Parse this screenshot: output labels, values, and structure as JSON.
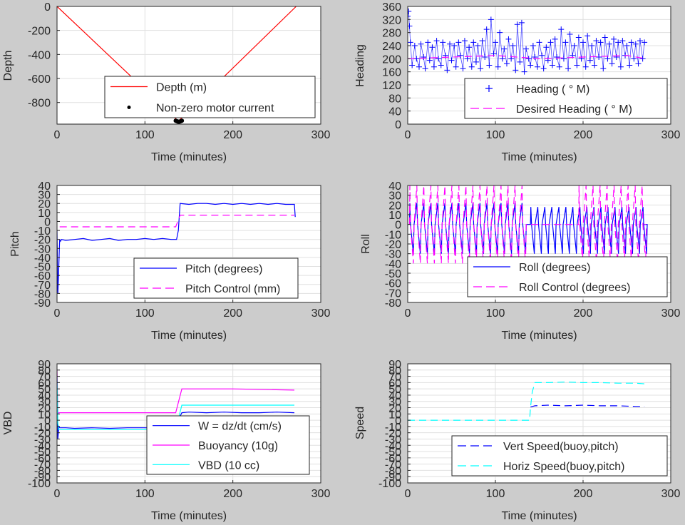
{
  "chart_data": [
    {
      "type": "line",
      "title": "",
      "xlabel": "Time (minutes)",
      "ylabel": "Depth",
      "xlim": [
        0,
        300
      ],
      "ylim": [
        -980,
        0
      ],
      "xticks": [
        0,
        100,
        200,
        300
      ],
      "yticks": [
        0,
        -200,
        -400,
        -600,
        -800
      ],
      "grid": true,
      "legend_position": "bottom",
      "colors": {
        "depth": "#ff0000",
        "motor": "#000000"
      },
      "series": [
        {
          "name": "Depth (m)",
          "style": "line",
          "color": "#ff0000",
          "x": [
            0,
            138,
            272
          ],
          "y": [
            0,
            -955,
            0
          ]
        },
        {
          "name": "Non-zero motor current",
          "style": "dots",
          "color": "#000000",
          "x": [
            135,
            136,
            137,
            138,
            139,
            140,
            141,
            142
          ],
          "y": [
            -952,
            -955,
            -958,
            -960,
            -960,
            -958,
            -955,
            -952
          ]
        }
      ]
    },
    {
      "type": "scatter",
      "title": "",
      "xlabel": "Time (minutes)",
      "ylabel": "Heading",
      "xlim": [
        0,
        300
      ],
      "ylim": [
        0,
        360
      ],
      "xticks": [
        0,
        100,
        200,
        300
      ],
      "yticks": [
        0,
        40,
        80,
        120,
        160,
        200,
        240,
        280,
        320,
        360
      ],
      "grid": true,
      "legend_position": "bottom",
      "series": [
        {
          "name": "Heading (   ° M)",
          "style": "plus",
          "color": "#0000ff",
          "x": [
            0,
            1,
            2,
            3,
            5,
            8,
            10,
            13,
            15,
            18,
            20,
            23,
            25,
            28,
            30,
            33,
            35,
            38,
            40,
            43,
            45,
            48,
            50,
            53,
            55,
            58,
            60,
            63,
            65,
            68,
            70,
            73,
            75,
            78,
            80,
            83,
            85,
            88,
            90,
            93,
            95,
            98,
            100,
            103,
            105,
            108,
            110,
            113,
            115,
            118,
            120,
            123,
            125,
            128,
            130,
            133,
            135,
            138,
            140,
            143,
            145,
            148,
            150,
            153,
            155,
            158,
            160,
            163,
            165,
            168,
            170,
            173,
            175,
            178,
            180,
            183,
            185,
            188,
            190,
            193,
            195,
            198,
            200,
            203,
            205,
            208,
            210,
            213,
            215,
            218,
            220,
            223,
            225,
            228,
            230,
            233,
            235,
            238,
            240,
            243,
            245,
            248,
            250,
            253,
            255,
            258,
            260,
            263,
            265,
            268,
            270
          ],
          "y": [
            330,
            345,
            300,
            250,
            180,
            240,
            200,
            175,
            245,
            205,
            170,
            250,
            195,
            235,
            175,
            255,
            200,
            180,
            250,
            210,
            165,
            245,
            195,
            240,
            175,
            250,
            210,
            170,
            255,
            200,
            235,
            175,
            250,
            190,
            240,
            170,
            255,
            205,
            290,
            180,
            320,
            215,
            250,
            175,
            280,
            200,
            230,
            185,
            260,
            200,
            240,
            165,
            305,
            190,
            310,
            160,
            230,
            200,
            180,
            240,
            205,
            175,
            250,
            210,
            170,
            235,
            195,
            250,
            180,
            260,
            205,
            175,
            290,
            200,
            250,
            170,
            275,
            210,
            240,
            180,
            265,
            200,
            250,
            175,
            270,
            195,
            240,
            180,
            255,
            205,
            250,
            170,
            265,
            200,
            245,
            185,
            260,
            205,
            250,
            175,
            255,
            210,
            240,
            180,
            250,
            200,
            245,
            185,
            255,
            200,
            250
          ]
        },
        {
          "name": "Desired Heading (     ° M)",
          "style": "dash",
          "color": "#ff00ff",
          "x": [
            0,
            50,
            100,
            150,
            200,
            250,
            272
          ],
          "y": [
            200,
            205,
            210,
            200,
            205,
            210,
            200
          ]
        }
      ]
    },
    {
      "type": "line",
      "title": "",
      "xlabel": "Time (minutes)",
      "ylabel": "Pitch",
      "xlim": [
        0,
        300
      ],
      "ylim": [
        -90,
        40
      ],
      "xticks": [
        0,
        100,
        200,
        300
      ],
      "yticks": [
        40,
        30,
        20,
        10,
        0,
        -10,
        -20,
        -30,
        -40,
        -50,
        -60,
        -70,
        -80,
        -90
      ],
      "grid": true,
      "legend_position": "bottom",
      "series": [
        {
          "name": "Pitch (degrees)",
          "style": "line",
          "color": "#0000ff",
          "x": [
            0,
            1,
            2,
            3,
            4,
            5,
            10,
            20,
            30,
            40,
            50,
            60,
            70,
            80,
            90,
            100,
            110,
            120,
            130,
            136,
            138,
            140,
            150,
            160,
            170,
            180,
            190,
            200,
            210,
            220,
            230,
            240,
            250,
            260,
            270,
            271
          ],
          "y": [
            -10,
            -80,
            -50,
            -20,
            -22,
            -20,
            -21,
            -20,
            -19,
            -21,
            -20,
            -19,
            -21,
            -20,
            -20,
            -19,
            -20,
            -19,
            -20,
            -20,
            -10,
            20,
            19,
            20,
            20,
            19,
            20,
            19,
            20,
            19,
            20,
            19,
            20,
            19,
            19,
            5
          ]
        },
        {
          "name": "Pitch Control (mm)",
          "style": "dash",
          "color": "#ff00ff",
          "x": [
            3,
            135,
            140,
            270
          ],
          "y": [
            -6,
            -6,
            7,
            7
          ]
        }
      ]
    },
    {
      "type": "line",
      "title": "",
      "xlabel": "Time (minutes)",
      "ylabel": "Roll",
      "xlim": [
        0,
        300
      ],
      "ylim": [
        -80,
        40
      ],
      "xticks": [
        0,
        100,
        200,
        300
      ],
      "yticks": [
        40,
        30,
        20,
        10,
        0,
        -10,
        -20,
        -30,
        -40,
        -50,
        -60,
        -70,
        -80
      ],
      "grid": true,
      "legend_position": "bottom",
      "oscillation": {
        "roll_segments": [
          {
            "x": [
              2,
              136
            ],
            "amplitude": [
              22,
              -30
            ]
          },
          {
            "x": [
              140,
              270
            ],
            "amplitude": [
              18,
              -30
            ]
          }
        ],
        "control_segments": [
          {
            "x": [
              2,
              136
            ],
            "amplitude": [
              40,
              -40
            ]
          },
          {
            "x": [
              195,
              270
            ],
            "amplitude": [
              40,
              -40
            ]
          }
        ],
        "period_minutes": 8
      },
      "series": [
        {
          "name": "Roll (degrees)",
          "style": "line",
          "color": "#0000ff"
        },
        {
          "name": "Roll Control (degrees)",
          "style": "dash",
          "color": "#ff00ff"
        }
      ]
    },
    {
      "type": "line",
      "title": "",
      "xlabel": "Time (minutes)",
      "ylabel": "VBD",
      "xlim": [
        0,
        300
      ],
      "ylim": [
        -100,
        90
      ],
      "xticks": [
        0,
        100,
        200,
        300
      ],
      "yticks": [
        90,
        80,
        70,
        60,
        50,
        40,
        30,
        20,
        10,
        0,
        -10,
        -20,
        -30,
        -40,
        -50,
        -60,
        -70,
        -80,
        -90,
        -100
      ],
      "grid": true,
      "legend_position": "bottom",
      "series": [
        {
          "name": "W = dz/dt (cm/s)",
          "style": "line",
          "color": "#0000ff",
          "x": [
            0,
            1,
            2,
            3,
            5,
            10,
            20,
            40,
            60,
            80,
            100,
            120,
            135,
            138,
            142,
            150,
            170,
            190,
            210,
            230,
            250,
            270
          ],
          "y": [
            60,
            -30,
            -10,
            -12,
            -12,
            -12,
            -13,
            -12,
            -13,
            -12,
            -12,
            -13,
            -12,
            0,
            12,
            13,
            12,
            13,
            12,
            12,
            13,
            12
          ]
        },
        {
          "name": "Buoyancy (10g)",
          "style": "line",
          "color": "#ff00ff",
          "x": [
            0,
            1,
            2,
            5,
            135,
            142,
            200,
            270
          ],
          "y": [
            80,
            10,
            12,
            12,
            12,
            50,
            50,
            48
          ]
        },
        {
          "name": "VBD (10 cc)",
          "style": "line",
          "color": "#00ffff",
          "x": [
            0,
            1,
            2,
            5,
            135,
            142,
            200,
            270
          ],
          "y": [
            70,
            -5,
            -15,
            -15,
            -15,
            24,
            24,
            24
          ]
        }
      ]
    },
    {
      "type": "line",
      "title": "",
      "xlabel": "Time (minutes)",
      "ylabel": "Speed",
      "xlim": [
        0,
        300
      ],
      "ylim": [
        -100,
        90
      ],
      "xticks": [
        0,
        100,
        200,
        300
      ],
      "yticks": [
        90,
        80,
        70,
        60,
        50,
        40,
        30,
        20,
        10,
        0,
        -10,
        -20,
        -30,
        -40,
        -50,
        -60,
        -70,
        -80,
        -90,
        -100
      ],
      "grid": true,
      "legend_position": "bottom",
      "series": [
        {
          "name": "Vert Speed(buoy,pitch)",
          "style": "dash",
          "color": "#0000ff",
          "x": [
            140,
            145,
            160,
            180,
            200,
            220,
            240,
            260,
            270
          ],
          "y": [
            21,
            23,
            24,
            23,
            24,
            23,
            23,
            22,
            22
          ]
        },
        {
          "name": "Horiz Speed(buoy,pitch)",
          "style": "dash",
          "color": "#00ffff",
          "x": [
            0,
            60,
            130,
            139,
            140,
            142,
            145,
            160,
            180,
            200,
            220,
            240,
            260,
            270
          ],
          "y": [
            0,
            0,
            0,
            0,
            20,
            45,
            60,
            60,
            61,
            60,
            60,
            59,
            59,
            58
          ]
        }
      ]
    }
  ]
}
